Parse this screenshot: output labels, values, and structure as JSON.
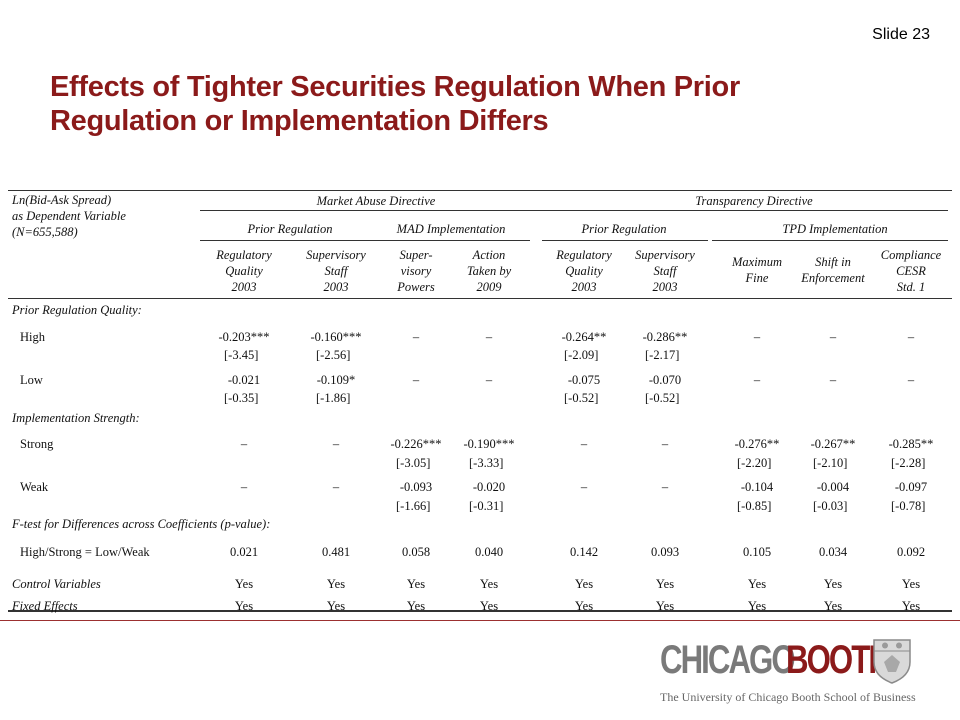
{
  "slide": {
    "number_label": "Slide 23"
  },
  "title": {
    "line1": "Effects of Tighter Securities Regulation When Prior",
    "line2": "Regulation or Implementation Differs"
  },
  "table": {
    "stub_header": [
      "Ln(Bid-Ask Spread)",
      "as Dependent Variable",
      "(N=655,588)"
    ],
    "groups": [
      "Market Abuse Directive",
      "Transparency Directive"
    ],
    "subgroups": [
      "Prior Regulation",
      "MAD Implementation",
      "Prior Regulation",
      "TPD Implementation"
    ],
    "columns": [
      [
        "Regulatory",
        "Quality",
        "2003"
      ],
      [
        "Supervisory",
        "Staff",
        "2003"
      ],
      [
        "Super-",
        "visory",
        "Powers"
      ],
      [
        "Action",
        "Taken by",
        "2009"
      ],
      [
        "Regulatory",
        "Quality",
        "2003"
      ],
      [
        "Supervisory",
        "Staff",
        "2003"
      ],
      [
        "Maximum",
        "Fine"
      ],
      [
        "Shift in",
        "Enforcement"
      ],
      [
        "Compliance",
        "CESR",
        "Std. 1"
      ]
    ],
    "sections": {
      "prior": "Prior Regulation Quality:",
      "impl": "Implementation Strength:",
      "ftest": "F-test for Differences across Coefficients (p-value):"
    },
    "rows": {
      "high": {
        "label": "High",
        "values": [
          "-0.203***",
          "-0.160***",
          "–",
          "–",
          "-0.264**",
          "-0.286**",
          "–",
          "–",
          "–"
        ],
        "tstats": [
          "[-3.45]",
          "[-2.56]",
          "",
          "",
          "[-2.09]",
          "[-2.17]",
          "",
          "",
          ""
        ]
      },
      "low": {
        "label": "Low",
        "values": [
          "-0.021",
          "-0.109*",
          "–",
          "–",
          "-0.075",
          "-0.070",
          "–",
          "–",
          "–"
        ],
        "tstats": [
          "[-0.35]",
          "[-1.86]",
          "",
          "",
          "[-0.52]",
          "[-0.52]",
          "",
          "",
          ""
        ]
      },
      "strong": {
        "label": "Strong",
        "values": [
          "–",
          "–",
          "-0.226***",
          "-0.190***",
          "–",
          "–",
          "-0.276**",
          "-0.267**",
          "-0.285**"
        ],
        "tstats": [
          "",
          "",
          "[-3.05]",
          "[-3.33]",
          "",
          "",
          "[-2.20]",
          "[-2.10]",
          "[-2.28]"
        ]
      },
      "weak": {
        "label": "Weak",
        "values": [
          "–",
          "–",
          "-0.093",
          "-0.020",
          "–",
          "–",
          "-0.104",
          "-0.004",
          "-0.097"
        ],
        "tstats": [
          "",
          "",
          "[-1.66]",
          "[-0.31]",
          "",
          "",
          "[-0.85]",
          "[-0.03]",
          "[-0.78]"
        ]
      },
      "ftest": {
        "label": "High/Strong = Low/Weak",
        "values": [
          "0.021",
          "0.481",
          "0.058",
          "0.040",
          "0.142",
          "0.093",
          "0.105",
          "0.034",
          "0.092"
        ]
      },
      "controls": {
        "label": "Control Variables",
        "values": [
          "Yes",
          "Yes",
          "Yes",
          "Yes",
          "Yes",
          "Yes",
          "Yes",
          "Yes",
          "Yes"
        ]
      },
      "fixed": {
        "label": "Fixed Effects",
        "values": [
          "Yes",
          "Yes",
          "Yes",
          "Yes",
          "Yes",
          "Yes",
          "Yes",
          "Yes",
          "Yes"
        ]
      }
    }
  },
  "footer": {
    "logo_part1": "CHICAGO",
    "logo_part2": "BOOTH",
    "tagline": "The University of Chicago Booth School of Business",
    "colors": {
      "accent": "#8b1a1a",
      "logo_gray": "#7a7a7a",
      "rule": "#9c3030"
    }
  }
}
